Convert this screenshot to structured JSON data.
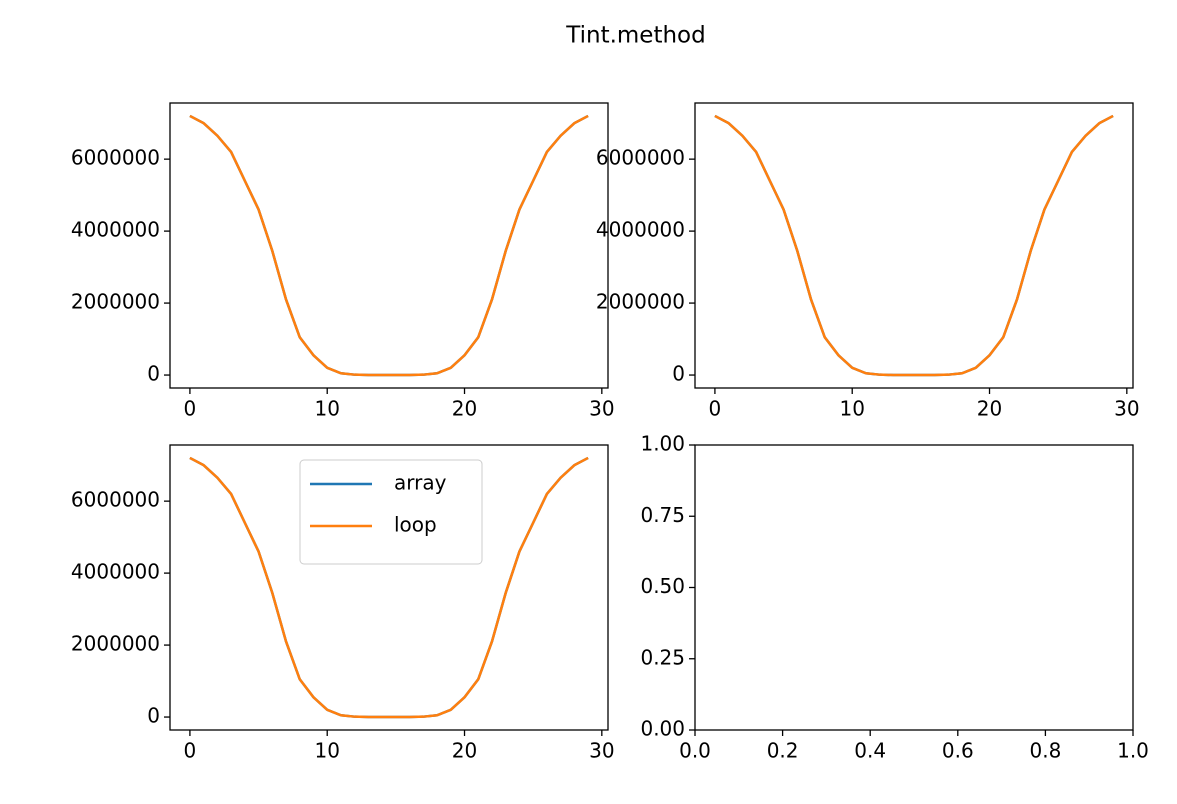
{
  "title": "Tint.method",
  "chart_data": [
    {
      "type": "line",
      "x": [
        0,
        1,
        2,
        3,
        4,
        5,
        6,
        7,
        8,
        9,
        10,
        11,
        12,
        13,
        14,
        15,
        16,
        17,
        18,
        19,
        20,
        21,
        22,
        23,
        24,
        25,
        26,
        27,
        28,
        29
      ],
      "series": [
        {
          "color": "#1f77b4",
          "values": [
            7200000,
            7000000,
            6650000,
            6200000,
            5400000,
            4600000,
            3450000,
            2100000,
            1050000,
            550000,
            200000,
            50000,
            10000,
            0,
            0,
            0,
            0,
            10000,
            50000,
            200000,
            550000,
            1050000,
            2100000,
            3450000,
            4600000,
            5400000,
            6200000,
            6650000,
            7000000,
            7200000
          ]
        },
        {
          "color": "#ff7f0e",
          "values": [
            7200000,
            7000000,
            6650000,
            6200000,
            5400000,
            4600000,
            3450000,
            2100000,
            1050000,
            550000,
            200000,
            50000,
            10000,
            0,
            0,
            0,
            0,
            10000,
            50000,
            200000,
            550000,
            1050000,
            2100000,
            3450000,
            4600000,
            5400000,
            6200000,
            6650000,
            7000000,
            7200000
          ]
        }
      ],
      "xlim": [
        -1.45,
        30.45
      ],
      "xticks": [
        0,
        10,
        20,
        30
      ],
      "ylim": [
        -360000,
        7560000
      ],
      "yticks": [
        0,
        2000000,
        4000000,
        6000000
      ]
    },
    {
      "type": "line",
      "x": [
        0,
        1,
        2,
        3,
        4,
        5,
        6,
        7,
        8,
        9,
        10,
        11,
        12,
        13,
        14,
        15,
        16,
        17,
        18,
        19,
        20,
        21,
        22,
        23,
        24,
        25,
        26,
        27,
        28,
        29
      ],
      "series": [
        {
          "color": "#1f77b4",
          "values": [
            7200000,
            7000000,
            6650000,
            6200000,
            5400000,
            4600000,
            3450000,
            2100000,
            1050000,
            550000,
            200000,
            50000,
            10000,
            0,
            0,
            0,
            0,
            10000,
            50000,
            200000,
            550000,
            1050000,
            2100000,
            3450000,
            4600000,
            5400000,
            6200000,
            6650000,
            7000000,
            7200000
          ]
        },
        {
          "color": "#ff7f0e",
          "values": [
            7200000,
            7000000,
            6650000,
            6200000,
            5400000,
            4600000,
            3450000,
            2100000,
            1050000,
            550000,
            200000,
            50000,
            10000,
            0,
            0,
            0,
            0,
            10000,
            50000,
            200000,
            550000,
            1050000,
            2100000,
            3450000,
            4600000,
            5400000,
            6200000,
            6650000,
            7000000,
            7200000
          ]
        }
      ],
      "xlim": [
        -1.45,
        30.45
      ],
      "xticks": [
        0,
        10,
        20,
        30
      ],
      "ylim": [
        -360000,
        7560000
      ],
      "yticks": [
        0,
        2000000,
        4000000,
        6000000
      ]
    },
    {
      "type": "line",
      "x": [
        0,
        1,
        2,
        3,
        4,
        5,
        6,
        7,
        8,
        9,
        10,
        11,
        12,
        13,
        14,
        15,
        16,
        17,
        18,
        19,
        20,
        21,
        22,
        23,
        24,
        25,
        26,
        27,
        28,
        29
      ],
      "series": [
        {
          "name": "array",
          "color": "#1f77b4",
          "values": [
            7200000,
            7000000,
            6650000,
            6200000,
            5400000,
            4600000,
            3450000,
            2100000,
            1050000,
            550000,
            200000,
            50000,
            10000,
            0,
            0,
            0,
            0,
            10000,
            50000,
            200000,
            550000,
            1050000,
            2100000,
            3450000,
            4600000,
            5400000,
            6200000,
            6650000,
            7000000,
            7200000
          ]
        },
        {
          "name": "loop",
          "color": "#ff7f0e",
          "values": [
            7200000,
            7000000,
            6650000,
            6200000,
            5400000,
            4600000,
            3450000,
            2100000,
            1050000,
            550000,
            200000,
            50000,
            10000,
            0,
            0,
            0,
            0,
            10000,
            50000,
            200000,
            550000,
            1050000,
            2100000,
            3450000,
            4600000,
            5400000,
            6200000,
            6650000,
            7000000,
            7200000
          ]
        }
      ],
      "xlim": [
        -1.45,
        30.45
      ],
      "xticks": [
        0,
        10,
        20,
        30
      ],
      "ylim": [
        -360000,
        7560000
      ],
      "yticks": [
        0,
        2000000,
        4000000,
        6000000
      ],
      "legend": "upper center"
    },
    {
      "type": "line",
      "series": [],
      "xlim": [
        0,
        1
      ],
      "xticks": [
        {
          "value": 0,
          "label": "0.0"
        },
        0.2,
        0.4,
        0.6,
        0.8,
        {
          "value": 1,
          "label": "1.0"
        }
      ],
      "ylim": [
        0,
        1
      ],
      "yticks": [
        {
          "value": 0,
          "label": "0.00"
        },
        0.25,
        {
          "value": 0.5,
          "label": "0.50"
        },
        0.75,
        {
          "value": 1,
          "label": "1.00"
        }
      ]
    }
  ]
}
